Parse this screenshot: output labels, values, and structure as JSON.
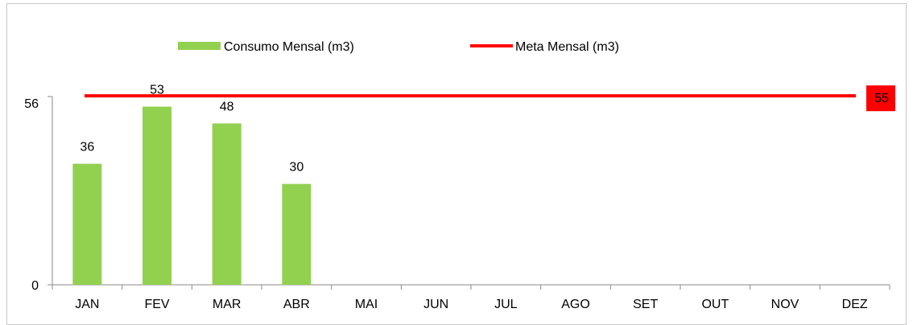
{
  "chart_data": {
    "type": "bar",
    "categories": [
      "JAN",
      "FEV",
      "MAR",
      "ABR",
      "MAI",
      "JUN",
      "JUL",
      "AGO",
      "SET",
      "OUT",
      "NOV",
      "DEZ"
    ],
    "series": [
      {
        "name": "Consumo Mensal (m3)",
        "type": "bar",
        "color": "#92d050",
        "values": [
          36,
          53,
          48,
          30,
          null,
          null,
          null,
          null,
          null,
          null,
          null,
          null
        ]
      },
      {
        "name": "Meta Mensal (m3)",
        "type": "line",
        "color": "#ff0000",
        "values": [
          55,
          55,
          55,
          55,
          55,
          55,
          55,
          55,
          55,
          55,
          55,
          55
        ]
      }
    ],
    "data_labels": [
      "36",
      "53",
      "48",
      "30"
    ],
    "target_label": "55",
    "yticks": [
      "0",
      "56"
    ],
    "ylim": [
      0,
      56
    ],
    "legend_position": "top",
    "grid": false
  }
}
